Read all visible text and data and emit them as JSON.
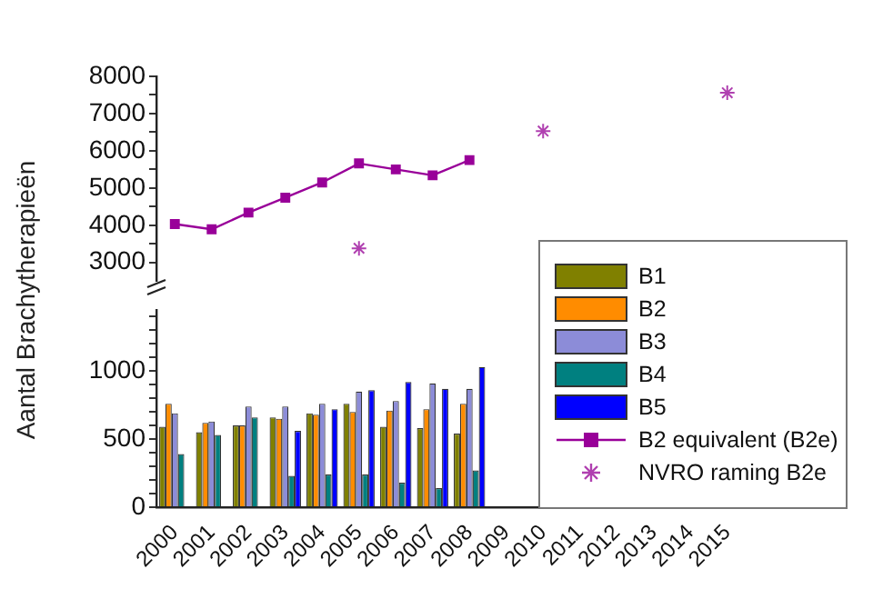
{
  "chart_data": [
    {
      "type": "line",
      "categories": [
        "2000",
        "2001",
        "2002",
        "2003",
        "2004",
        "2005",
        "2006",
        "2007",
        "2008",
        "2009",
        "2010",
        "2011",
        "2012",
        "2013",
        "2014",
        "2015"
      ],
      "ylim": [
        2500,
        8000
      ],
      "yticks": [
        3000,
        {
          "value": 3500,
          "label": null
        },
        4000,
        {
          "value": 4500,
          "label": null
        },
        5000,
        {
          "value": 5500,
          "label": null
        },
        6000,
        {
          "value": 6500,
          "label": null
        },
        7000,
        {
          "value": 7500,
          "label": null
        },
        8000
      ],
      "grid": false,
      "legend": "right",
      "tick_labels": "y",
      "series": [
        {
          "name": "B2 equivalent (B2e)",
          "type": "line",
          "marker": "square",
          "color": "#990099",
          "values": [
            4030,
            3890,
            4340,
            4740,
            5150,
            5660,
            5500,
            5340,
            5750,
            null,
            null,
            null,
            null,
            null,
            null,
            null
          ]
        },
        {
          "name": "NVRO raming B2e",
          "type": "scatter",
          "marker": "cross",
          "color": "#b040b0",
          "values": [
            null,
            null,
            null,
            null,
            null,
            3380,
            null,
            null,
            null,
            null,
            6530,
            null,
            null,
            null,
            null,
            7560
          ]
        }
      ]
    },
    {
      "type": "bar",
      "ylabel": "Aantal Brachytherapieën",
      "categories": [
        "2000",
        "2001",
        "2002",
        "2003",
        "2004",
        "2005",
        "2006",
        "2007",
        "2008",
        "2009",
        "2010",
        "2011",
        "2012",
        "2013",
        "2014",
        "2015"
      ],
      "ylim": [
        0,
        1450
      ],
      "yticks": [
        0,
        {
          "value": 100,
          "label": null
        },
        {
          "value": 200,
          "label": null
        },
        {
          "value": 300,
          "label": null
        },
        {
          "value": 400,
          "label": null
        },
        500,
        {
          "value": 600,
          "label": null
        },
        {
          "value": 700,
          "label": null
        },
        {
          "value": 800,
          "label": null
        },
        {
          "value": 900,
          "label": null
        },
        1000,
        {
          "value": 1100,
          "label": null
        },
        {
          "value": 1200,
          "label": null
        },
        {
          "value": 1300,
          "label": null
        },
        {
          "value": 1400,
          "label": null
        }
      ],
      "grid": false,
      "legend": "right",
      "series": [
        {
          "name": "B1",
          "color": "#808000",
          "values": [
            590,
            550,
            600,
            660,
            690,
            760,
            590,
            580,
            540,
            null,
            null,
            null,
            null,
            null,
            null,
            null
          ]
        },
        {
          "name": "B2",
          "color": "#ff8c00",
          "values": [
            760,
            620,
            600,
            650,
            680,
            700,
            710,
            720,
            760,
            null,
            null,
            null,
            null,
            null,
            null,
            null
          ]
        },
        {
          "name": "B3",
          "color": "#8c8cd8",
          "values": [
            690,
            630,
            740,
            740,
            760,
            850,
            780,
            910,
            870,
            null,
            null,
            null,
            null,
            null,
            null,
            null
          ]
        },
        {
          "name": "B4",
          "color": "#008080",
          "values": [
            390,
            530,
            660,
            230,
            240,
            240,
            180,
            140,
            270,
            null,
            null,
            null,
            null,
            null,
            null,
            null
          ]
        },
        {
          "name": "B5",
          "color": "#0000ff",
          "values": [
            null,
            null,
            null,
            560,
            720,
            860,
            920,
            870,
            1030,
            null,
            null,
            null,
            null,
            null,
            null,
            null
          ]
        }
      ]
    }
  ]
}
